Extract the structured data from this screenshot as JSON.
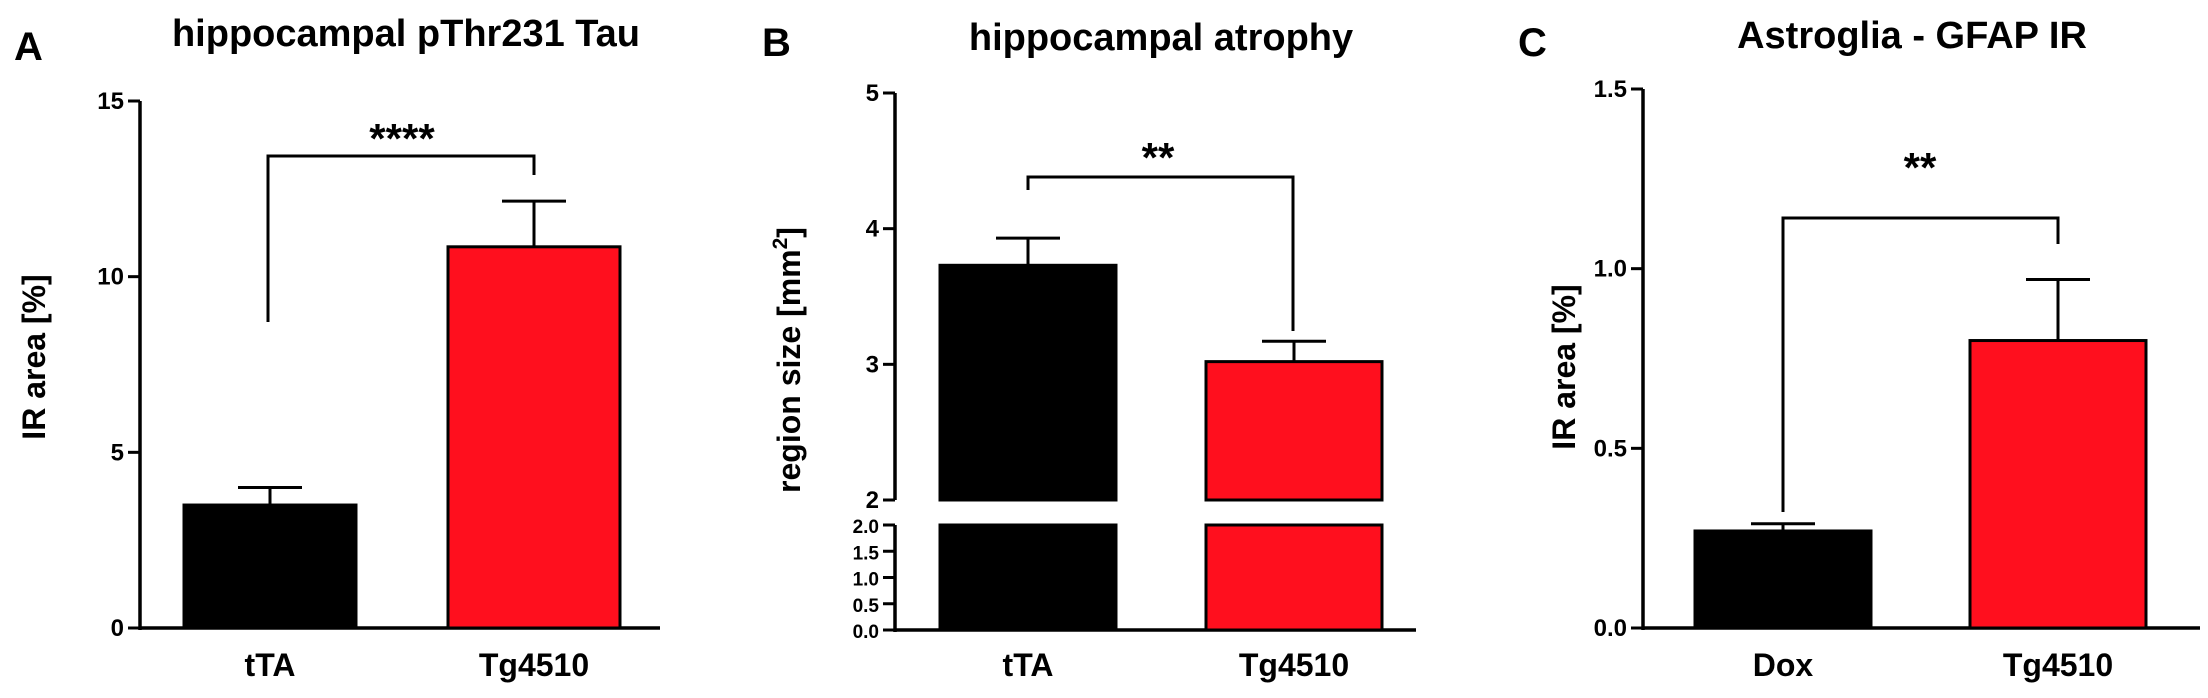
{
  "colors": {
    "control": "#000000",
    "tg4510": "#ff0f1e"
  },
  "chart_data": [
    {
      "panel": "A",
      "type": "bar",
      "title": "hippocampal pThr231 Tau",
      "xlabel": "",
      "ylabel": "IR area [%]",
      "ylim": [
        0,
        15
      ],
      "yticks": [
        0,
        5,
        10,
        15
      ],
      "ytick_labels": [
        "0",
        "5",
        "10",
        "15"
      ],
      "categories": [
        "tTA",
        "Tg4510"
      ],
      "values": [
        3.5,
        10.85
      ],
      "errors": [
        0.5,
        1.3
      ],
      "bar_colors": [
        "#000000",
        "#ff0f1e"
      ],
      "significance": "****"
    },
    {
      "panel": "B",
      "type": "bar",
      "title": "hippocampal atrophy",
      "xlabel": "",
      "ylabel": "region size [mm",
      "ylabel_superscript": "2",
      "ylabel_suffix": "]",
      "broken_axis": true,
      "ylim_lower": [
        0,
        2.0
      ],
      "yticks_lower": [
        0,
        0.5,
        1.0,
        1.5,
        2.0
      ],
      "ytick_labels_lower": [
        "0.0",
        "0.5",
        "1.0",
        "1.5",
        "2.0"
      ],
      "ylim_upper": [
        2,
        5
      ],
      "yticks_upper": [
        2,
        3,
        4,
        5
      ],
      "ytick_labels_upper": [
        "2",
        "3",
        "4",
        "5"
      ],
      "categories": [
        "tTA",
        "Tg4510"
      ],
      "values": [
        3.73,
        3.02
      ],
      "errors": [
        0.2,
        0.15
      ],
      "bar_colors": [
        "#000000",
        "#ff0f1e"
      ],
      "significance": "**"
    },
    {
      "panel": "C",
      "type": "bar",
      "title": "Astroglia - GFAP IR",
      "xlabel": "",
      "ylabel": "IR area [%]",
      "ylim": [
        0,
        1.5
      ],
      "yticks": [
        0,
        0.5,
        1.0,
        1.5
      ],
      "ytick_labels": [
        "0.0",
        "0.5",
        "1.0",
        "1.5"
      ],
      "categories": [
        "Dox",
        "Tg4510"
      ],
      "values": [
        0.27,
        0.8
      ],
      "errors": [
        0.02,
        0.17
      ],
      "bar_colors": [
        "#000000",
        "#ff0f1e"
      ],
      "significance": "**"
    }
  ]
}
